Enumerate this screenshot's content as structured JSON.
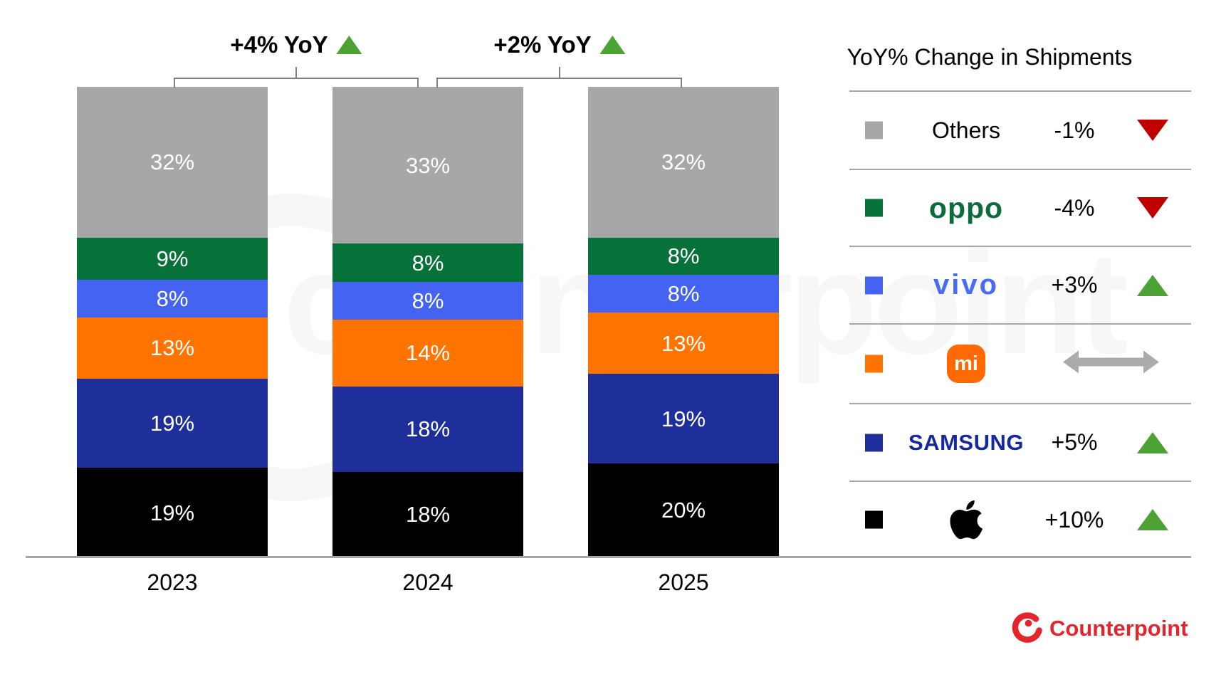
{
  "chart_data": {
    "type": "bar",
    "stacked": true,
    "unit": "%",
    "categories": [
      "2023",
      "2024",
      "2025"
    ],
    "series": [
      {
        "name": "Others",
        "color": "#A7A7A7",
        "values": [
          32,
          33,
          32
        ],
        "labels": [
          "32%",
          "33%",
          "32%"
        ]
      },
      {
        "name": "OPPO",
        "color": "#067138",
        "values": [
          9,
          8,
          8
        ],
        "labels": [
          "9%",
          "8%",
          "8%"
        ]
      },
      {
        "name": "vivo",
        "color": "#4463F2",
        "values": [
          8,
          8,
          8
        ],
        "labels": [
          "8%",
          "8%",
          "8%"
        ]
      },
      {
        "name": "Xiaomi",
        "color": "#FF7300",
        "values": [
          13,
          14,
          13
        ],
        "labels": [
          "13%",
          "14%",
          "13%"
        ]
      },
      {
        "name": "Samsung",
        "color": "#1E2F9C",
        "values": [
          19,
          18,
          19
        ],
        "labels": [
          "19%",
          "18%",
          "19%"
        ]
      },
      {
        "name": "Apple",
        "color": "#000000",
        "values": [
          19,
          18,
          20
        ],
        "labels": [
          "19%",
          "18%",
          "20%"
        ]
      }
    ],
    "segment_order": "top-to-bottom",
    "ylim": [
      0,
      100
    ],
    "annotations": [
      {
        "text": "+4% YoY",
        "direction": "up",
        "between": [
          "2023",
          "2024"
        ]
      },
      {
        "text": "+2% YoY",
        "direction": "up",
        "between": [
          "2024",
          "2025"
        ]
      }
    ],
    "legend_position": "right"
  },
  "legend": {
    "title": "YoY% Change in Shipments",
    "rows": [
      {
        "brand": "Others",
        "logo": "text",
        "logo_text": "Others",
        "change": "-1%",
        "direction": "down"
      },
      {
        "brand": "OPPO",
        "logo": "oppo",
        "logo_text": "oppo",
        "change": "-4%",
        "direction": "down"
      },
      {
        "brand": "vivo",
        "logo": "vivo",
        "logo_text": "vivo",
        "change": "+3%",
        "direction": "up"
      },
      {
        "brand": "Xiaomi",
        "logo": "mi",
        "logo_text": "mi",
        "change": "",
        "direction": "flat"
      },
      {
        "brand": "Samsung",
        "logo": "samsung",
        "logo_text": "SAMSUNG",
        "change": "+5%",
        "direction": "up"
      },
      {
        "brand": "Apple",
        "logo": "apple",
        "logo_text": "",
        "change": "+10%",
        "direction": "up"
      }
    ]
  },
  "watermark": {
    "text": "counterpoint"
  },
  "footer": {
    "brand": "Counterpoint"
  },
  "colors": {
    "up_green": "#4CA233",
    "down_red": "#C00000",
    "flat_gray": "#ABABAB",
    "axis_gray": "#A6A6A6",
    "bracket_gray": "#7F7F7F",
    "oppo_green": "#0B6B3D",
    "vivo_blue": "#4A6BF3",
    "mi_orange": "#FF6900",
    "samsung_navy": "#1428A0",
    "counterpoint_red": "#E5242C"
  }
}
